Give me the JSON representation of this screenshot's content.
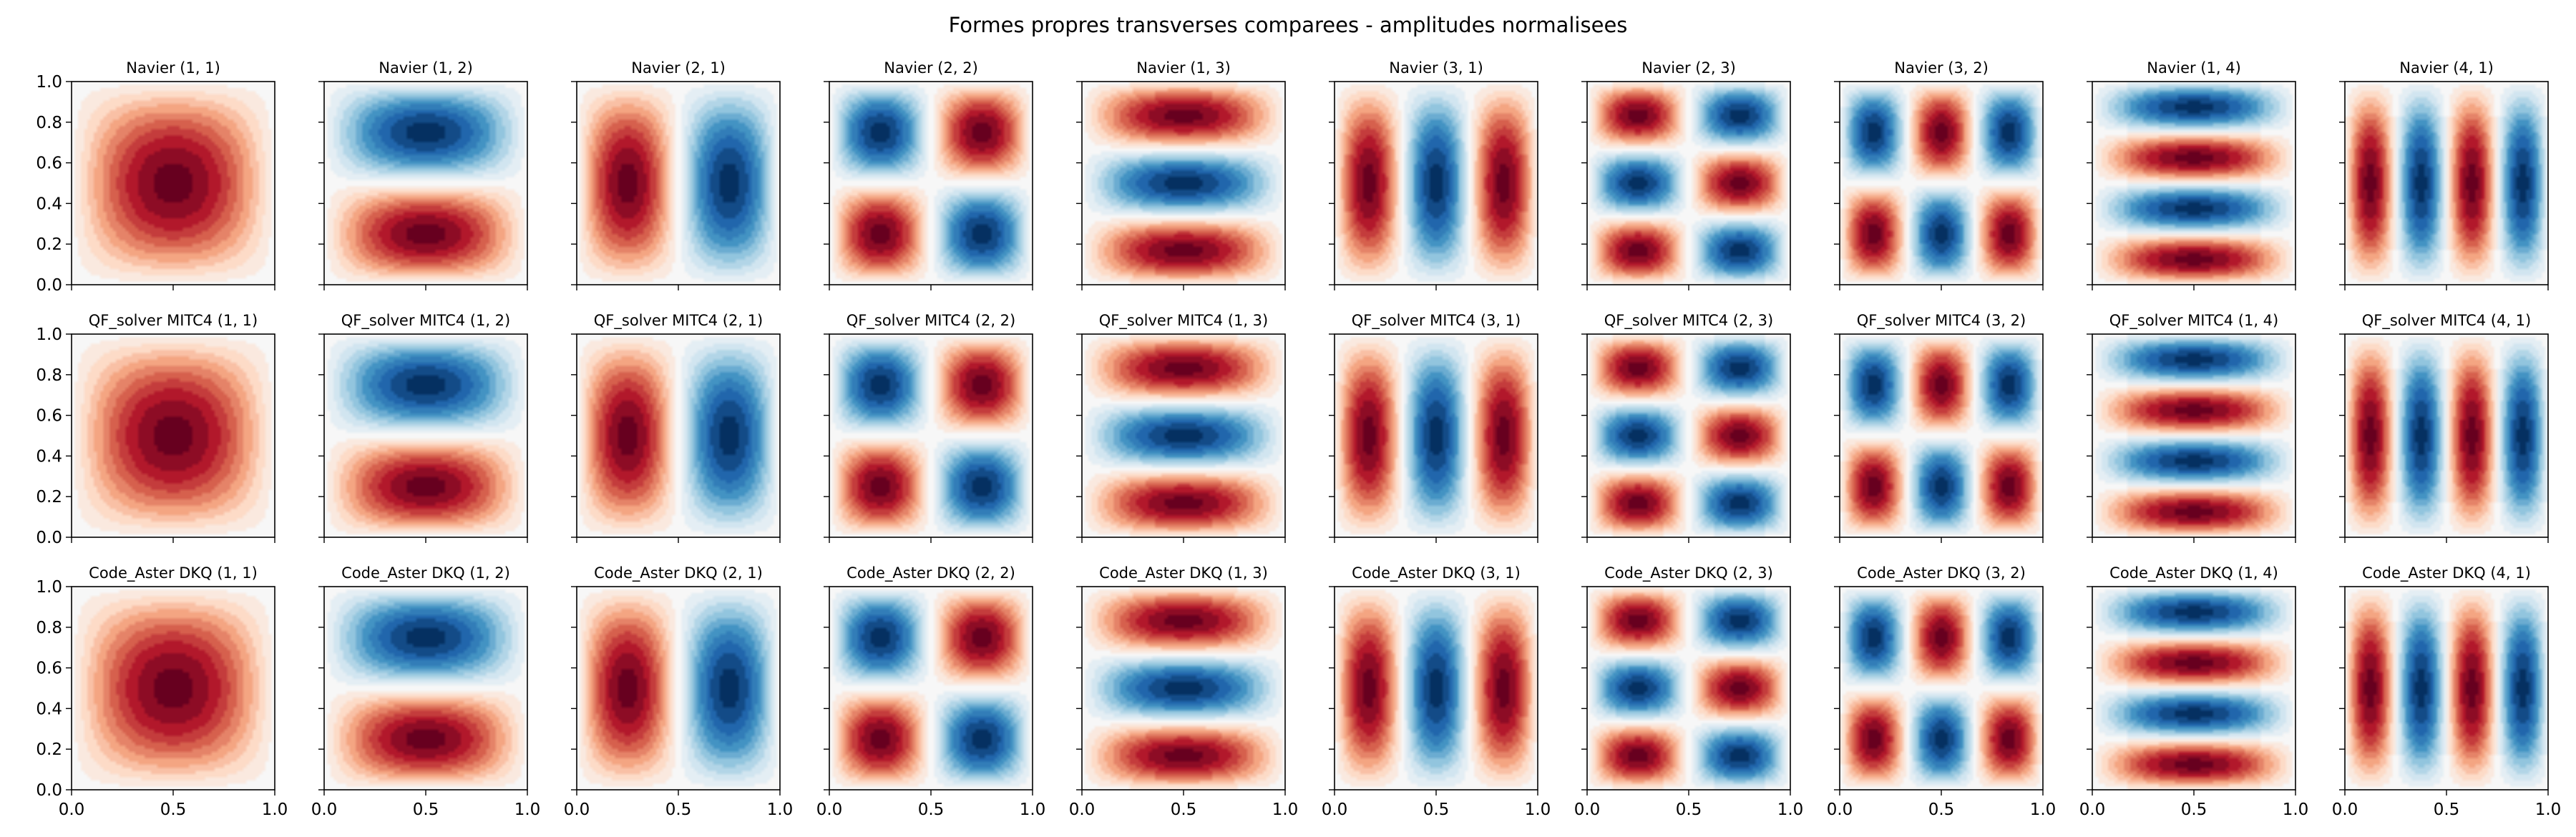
{
  "chart_data": {
    "type": "heatmap",
    "title": "Formes propres transverses comparees - amplitudes normalisees",
    "grid": false,
    "colormap": [
      "#67001f",
      "#b2182b",
      "#d6604d",
      "#f4a582",
      "#fddbc7",
      "#f7f7f7",
      "#d1e5f0",
      "#92c5de",
      "#4393c3",
      "#2166ac",
      "#053061"
    ],
    "xlim": [
      0,
      1
    ],
    "ylim": [
      0,
      1
    ],
    "xticks": [
      "0.0",
      "0.5",
      "1.0"
    ],
    "yticks": [
      "0.0",
      "0.2",
      "0.4",
      "0.6",
      "0.8",
      "1.0"
    ],
    "modes": [
      [
        1,
        1
      ],
      [
        1,
        2
      ],
      [
        2,
        1
      ],
      [
        2,
        2
      ],
      [
        1,
        3
      ],
      [
        3,
        1
      ],
      [
        2,
        3
      ],
      [
        3,
        2
      ],
      [
        1,
        4
      ],
      [
        4,
        1
      ]
    ],
    "rows": [
      {
        "method": "Navier",
        "titles": [
          "Navier (1, 1)",
          "Navier (1, 2)",
          "Navier (2, 1)",
          "Navier (2, 2)",
          "Navier (1, 3)",
          "Navier (3, 1)",
          "Navier (2, 3)",
          "Navier (3, 2)",
          "Navier (1, 4)",
          "Navier (4, 1)"
        ]
      },
      {
        "method": "QF_solver MITC4",
        "titles": [
          "QF_solver MITC4 (1, 1)",
          "QF_solver MITC4 (1, 2)",
          "QF_solver MITC4 (2, 1)",
          "QF_solver MITC4 (2, 2)",
          "QF_solver MITC4 (1, 3)",
          "QF_solver MITC4 (3, 1)",
          "QF_solver MITC4 (2, 3)",
          "QF_solver MITC4 (3, 2)",
          "QF_solver MITC4 (1, 4)",
          "QF_solver MITC4 (4, 1)"
        ]
      },
      {
        "method": "Code_Aster DKQ",
        "titles": [
          "Code_Aster DKQ (1, 1)",
          "Code_Aster DKQ (1, 2)",
          "Code_Aster DKQ (2, 1)",
          "Code_Aster DKQ (2, 2)",
          "Code_Aster DKQ (1, 3)",
          "Code_Aster DKQ (3, 1)",
          "Code_Aster DKQ (2, 3)",
          "Code_Aster DKQ (3, 2)",
          "Code_Aster DKQ (1, 4)",
          "Code_Aster DKQ (4, 1)"
        ]
      }
    ]
  }
}
